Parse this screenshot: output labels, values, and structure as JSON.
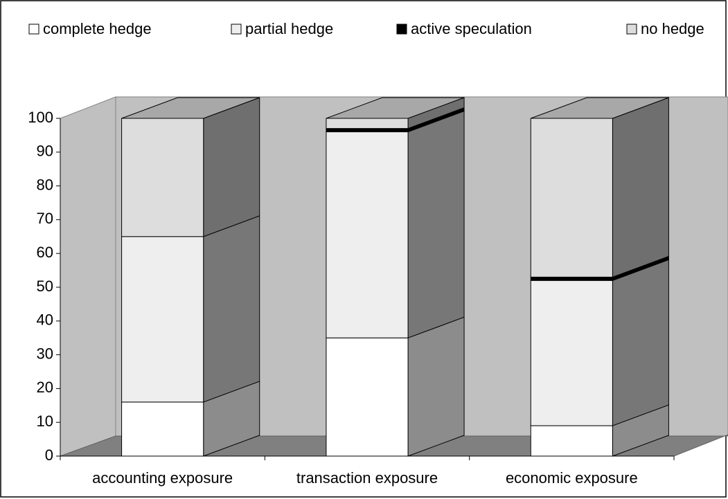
{
  "chart_data": {
    "type": "bar3d_stacked",
    "categories": [
      "accounting exposure",
      "transaction exposure",
      "economic exposure"
    ],
    "series": [
      {
        "name": "complete hedge",
        "color": "#ffffff",
        "values": [
          16,
          35,
          9
        ]
      },
      {
        "name": "partial hedge",
        "color": "#eeeeee",
        "values": [
          49,
          61,
          43
        ]
      },
      {
        "name": "active speculation",
        "color": "#000000",
        "values": [
          0,
          1,
          1
        ]
      },
      {
        "name": "no hedge",
        "color": "#dddddd",
        "values": [
          35,
          3,
          47
        ]
      }
    ],
    "ylim": [
      0,
      100
    ],
    "yticks": [
      0,
      10,
      20,
      30,
      40,
      50,
      60,
      70,
      80,
      90,
      100
    ],
    "legend": "top"
  }
}
